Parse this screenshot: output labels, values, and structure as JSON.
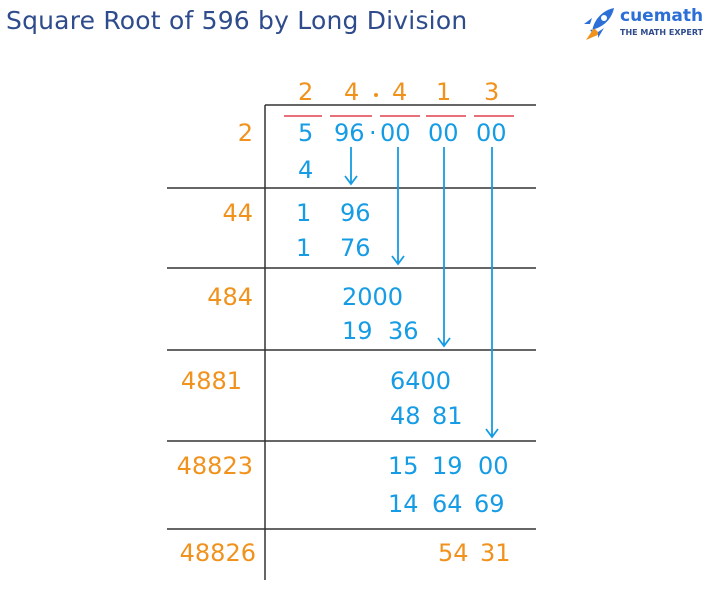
{
  "header": {
    "title": "Square Root of 596 by Long Division",
    "brand": "cuemath",
    "tagline": "THE MATH EXPERT",
    "icon": "rocket-icon"
  },
  "quotient": {
    "digits": [
      "2",
      "4",
      ".",
      "4",
      "1",
      "3"
    ]
  },
  "divisors": [
    "2",
    "44",
    "484",
    "4881",
    "48823",
    "48826"
  ],
  "dividend": {
    "first": "5",
    "second": "96",
    "dot": "·",
    "pairs": [
      "00",
      "00",
      "00"
    ]
  },
  "steps": {
    "s1_sub": "4",
    "s2_row1_a": "1",
    "s2_row1_b": "96",
    "s2_row2_a": "1",
    "s2_row2_b": "76",
    "s3_row1": "2000",
    "s3_row2_a": "19",
    "s3_row2_b": "36",
    "s4_row1": "6400",
    "s4_row2_a": "48",
    "s4_row2_b": "81",
    "s5_row1_a": "15",
    "s5_row1_b": "19",
    "s5_row1_c": "00",
    "s5_row2_a": "14",
    "s5_row2_b": "64",
    "s5_row2_c": "69",
    "remainder_a": "54",
    "remainder_b": "31"
  },
  "colors": {
    "title": "#2e4b8c",
    "orange": "#f0921c",
    "blue": "#159ce4",
    "rule": "#333333",
    "pair_bar": "#e8707a"
  }
}
